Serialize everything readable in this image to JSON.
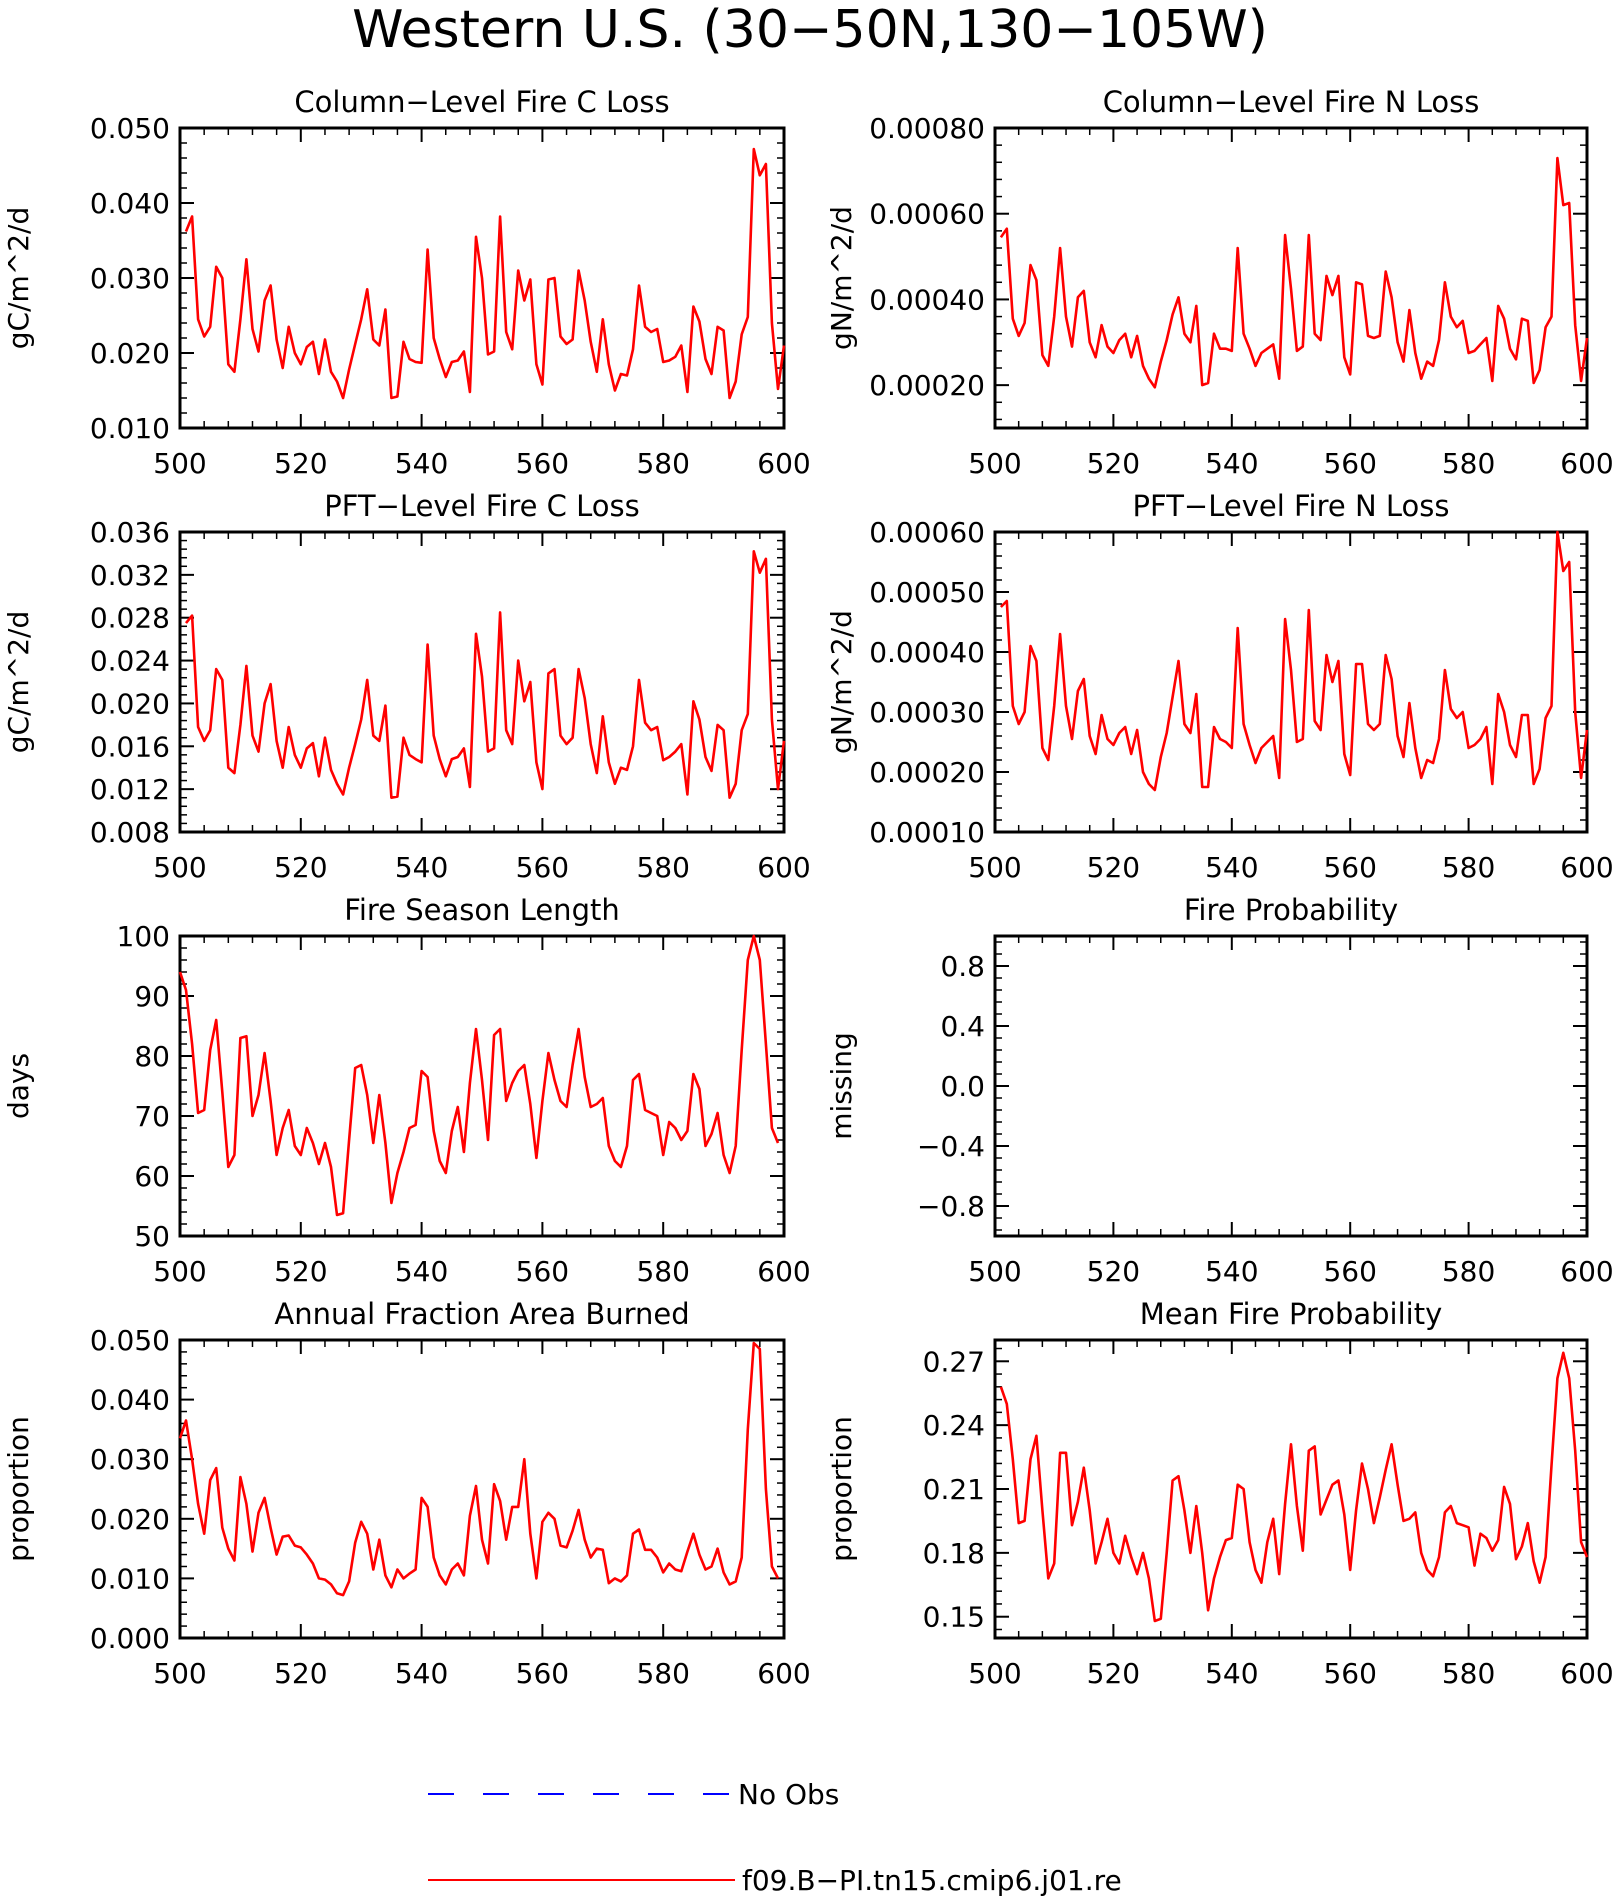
{
  "figure": {
    "title": "Western U.S. (30−50N,130−105W)",
    "line_color": "#ff0000",
    "obs_color": "#0000ff"
  },
  "legend": [
    {
      "label": "No Obs",
      "style": "dashed",
      "color": "#0000ff"
    },
    {
      "label": "f09.B−PI.tn15.cmip6.j01.re",
      "style": "solid",
      "color": "#ff0000"
    }
  ],
  "chart_data": [
    {
      "type": "line",
      "title": "Column−Level Fire C Loss",
      "ylabel": "gC/m^2/d",
      "xlim": [
        500,
        600
      ],
      "ylim": [
        0.01,
        0.05
      ],
      "xticks": [
        500,
        520,
        540,
        560,
        580,
        600
      ],
      "xtick_labels": [
        "500",
        "520",
        "540",
        "560",
        "580",
        "600"
      ],
      "yticks": [
        0.01,
        0.02,
        0.03,
        0.04,
        0.05
      ],
      "ytick_labels": [
        "0.010",
        "0.020",
        "0.030",
        "0.040",
        "0.050"
      ],
      "x_start": 501,
      "values": [
        0.0362,
        0.0382,
        0.0245,
        0.0222,
        0.0235,
        0.0315,
        0.03,
        0.0185,
        0.0175,
        0.0245,
        0.0325,
        0.0232,
        0.0202,
        0.027,
        0.029,
        0.0218,
        0.018,
        0.0235,
        0.02,
        0.0185,
        0.0208,
        0.0215,
        0.0172,
        0.0218,
        0.0175,
        0.0162,
        0.014,
        0.0178,
        0.0212,
        0.0245,
        0.0285,
        0.0218,
        0.021,
        0.0258,
        0.014,
        0.0142,
        0.0215,
        0.0192,
        0.0188,
        0.0187,
        0.0338,
        0.022,
        0.0192,
        0.0168,
        0.0188,
        0.019,
        0.0202,
        0.0148,
        0.0355,
        0.03,
        0.0198,
        0.0202,
        0.0382,
        0.0228,
        0.0205,
        0.031,
        0.027,
        0.0298,
        0.0185,
        0.0158,
        0.0298,
        0.03,
        0.0222,
        0.0212,
        0.0218,
        0.031,
        0.027,
        0.0215,
        0.0175,
        0.0245,
        0.0185,
        0.015,
        0.0172,
        0.017,
        0.0205,
        0.029,
        0.0235,
        0.0228,
        0.0232,
        0.0188,
        0.019,
        0.0195,
        0.021,
        0.0148,
        0.0262,
        0.0242,
        0.0192,
        0.0172,
        0.0235,
        0.023,
        0.014,
        0.0162,
        0.0225,
        0.0248,
        0.0472,
        0.0437,
        0.0452,
        0.024,
        0.0152,
        0.021
      ]
    },
    {
      "type": "line",
      "title": "Column−Level Fire N Loss",
      "ylabel": "gN/m^2/d",
      "xlim": [
        500,
        600
      ],
      "ylim": [
        0.0001,
        0.0008
      ],
      "xticks": [
        500,
        520,
        540,
        560,
        580,
        600
      ],
      "xtick_labels": [
        "500",
        "520",
        "540",
        "560",
        "580",
        "600"
      ],
      "yticks": [
        0.0002,
        0.0004,
        0.0006,
        0.0008
      ],
      "ytick_labels": [
        "0.00020",
        "0.00040",
        "0.00060",
        "0.00080"
      ],
      "x_start": 501,
      "values": [
        0.000545,
        0.000565,
        0.000355,
        0.000315,
        0.000345,
        0.00048,
        0.000445,
        0.00027,
        0.000245,
        0.00036,
        0.00052,
        0.00036,
        0.00029,
        0.000405,
        0.00042,
        0.0003,
        0.000265,
        0.00034,
        0.00029,
        0.000275,
        0.000305,
        0.00032,
        0.000265,
        0.000315,
        0.000245,
        0.000215,
        0.000195,
        0.000255,
        0.000305,
        0.000365,
        0.000405,
        0.00032,
        0.0003,
        0.000385,
        0.0002,
        0.000205,
        0.00032,
        0.000285,
        0.000285,
        0.00028,
        0.00052,
        0.00032,
        0.000285,
        0.000245,
        0.000275,
        0.000285,
        0.000295,
        0.000215,
        0.00055,
        0.000425,
        0.00028,
        0.00029,
        0.00055,
        0.00032,
        0.000305,
        0.000455,
        0.00041,
        0.000455,
        0.000265,
        0.000225,
        0.00044,
        0.000435,
        0.000315,
        0.00031,
        0.000315,
        0.000465,
        0.000405,
        0.0003,
        0.000255,
        0.000375,
        0.000275,
        0.000215,
        0.000255,
        0.000245,
        0.000305,
        0.00044,
        0.00036,
        0.000335,
        0.00035,
        0.000275,
        0.00028,
        0.000295,
        0.00031,
        0.00021,
        0.000385,
        0.000355,
        0.000285,
        0.00026,
        0.000355,
        0.00035,
        0.000205,
        0.000235,
        0.000335,
        0.00036,
        0.00073,
        0.00062,
        0.000625,
        0.00034,
        0.00021,
        0.00031
      ]
    },
    {
      "type": "line",
      "title": "PFT−Level Fire C Loss",
      "ylabel": "gC/m^2/d",
      "xlim": [
        500,
        600
      ],
      "ylim": [
        0.008,
        0.036
      ],
      "xticks": [
        500,
        520,
        540,
        560,
        580,
        600
      ],
      "xtick_labels": [
        "500",
        "520",
        "540",
        "560",
        "580",
        "600"
      ],
      "yticks": [
        0.008,
        0.012,
        0.016,
        0.02,
        0.024,
        0.028,
        0.032,
        0.036
      ],
      "ytick_labels": [
        "0.008",
        "0.012",
        "0.016",
        "0.020",
        "0.024",
        "0.028",
        "0.032",
        "0.036"
      ],
      "x_start": 501,
      "values": [
        0.0275,
        0.0282,
        0.0178,
        0.0165,
        0.0175,
        0.0232,
        0.0222,
        0.014,
        0.0135,
        0.018,
        0.0235,
        0.017,
        0.0155,
        0.02,
        0.0218,
        0.0165,
        0.014,
        0.0178,
        0.0152,
        0.014,
        0.0158,
        0.0163,
        0.0132,
        0.0168,
        0.0138,
        0.0125,
        0.0115,
        0.014,
        0.0162,
        0.0185,
        0.0222,
        0.017,
        0.0165,
        0.0198,
        0.0112,
        0.0113,
        0.0168,
        0.0152,
        0.0148,
        0.0145,
        0.0255,
        0.017,
        0.0148,
        0.0132,
        0.0148,
        0.015,
        0.0158,
        0.0122,
        0.0265,
        0.0225,
        0.0155,
        0.0158,
        0.0285,
        0.0175,
        0.0162,
        0.024,
        0.0202,
        0.022,
        0.0145,
        0.012,
        0.0228,
        0.0232,
        0.017,
        0.0162,
        0.0168,
        0.0232,
        0.0205,
        0.0162,
        0.0135,
        0.0188,
        0.0145,
        0.0125,
        0.014,
        0.0138,
        0.016,
        0.0222,
        0.0182,
        0.0175,
        0.0178,
        0.0147,
        0.015,
        0.0155,
        0.0162,
        0.0115,
        0.0202,
        0.0185,
        0.015,
        0.0137,
        0.018,
        0.0175,
        0.0112,
        0.0125,
        0.0175,
        0.019,
        0.0342,
        0.0322,
        0.0335,
        0.0185,
        0.012,
        0.0165
      ]
    },
    {
      "type": "line",
      "title": "PFT−Level Fire N Loss",
      "ylabel": "gN/m^2/d",
      "xlim": [
        500,
        600
      ],
      "ylim": [
        0.0001,
        0.0006
      ],
      "xticks": [
        500,
        520,
        540,
        560,
        580,
        600
      ],
      "xtick_labels": [
        "500",
        "520",
        "540",
        "560",
        "580",
        "600"
      ],
      "yticks": [
        0.0001,
        0.0002,
        0.0003,
        0.0004,
        0.0005,
        0.0006
      ],
      "ytick_labels": [
        "0.00010",
        "0.00020",
        "0.00030",
        "0.00040",
        "0.00050",
        "0.00060"
      ],
      "x_start": 501,
      "values": [
        0.000475,
        0.000485,
        0.00031,
        0.00028,
        0.0003,
        0.00041,
        0.000385,
        0.00024,
        0.00022,
        0.00031,
        0.00043,
        0.00031,
        0.000255,
        0.000335,
        0.000355,
        0.00026,
        0.00023,
        0.000295,
        0.000255,
        0.000245,
        0.000265,
        0.000275,
        0.00023,
        0.00027,
        0.0002,
        0.00018,
        0.00017,
        0.000225,
        0.000265,
        0.000325,
        0.000385,
        0.00028,
        0.000265,
        0.00033,
        0.000175,
        0.000175,
        0.000275,
        0.000255,
        0.00025,
        0.00024,
        0.00044,
        0.00028,
        0.000245,
        0.000215,
        0.00024,
        0.00025,
        0.00026,
        0.00019,
        0.000455,
        0.00037,
        0.00025,
        0.000255,
        0.00047,
        0.000285,
        0.00027,
        0.000395,
        0.00035,
        0.000385,
        0.00023,
        0.000195,
        0.00038,
        0.00038,
        0.00028,
        0.00027,
        0.00028,
        0.000395,
        0.000355,
        0.00026,
        0.000225,
        0.000315,
        0.00024,
        0.00019,
        0.00022,
        0.000215,
        0.000255,
        0.00037,
        0.000305,
        0.00029,
        0.0003,
        0.00024,
        0.000245,
        0.000255,
        0.000275,
        0.00018,
        0.00033,
        0.0003,
        0.000245,
        0.000225,
        0.000295,
        0.000295,
        0.00018,
        0.000205,
        0.00029,
        0.00031,
        0.0006,
        0.000535,
        0.00055,
        0.0003,
        0.00019,
        0.00027
      ]
    },
    {
      "type": "line",
      "title": "Fire Season Length",
      "ylabel": "days",
      "xlim": [
        500,
        600
      ],
      "ylim": [
        50,
        100
      ],
      "xticks": [
        500,
        520,
        540,
        560,
        580,
        600
      ],
      "xtick_labels": [
        "500",
        "520",
        "540",
        "560",
        "580",
        "600"
      ],
      "yticks": [
        50,
        60,
        70,
        80,
        90,
        100
      ],
      "ytick_labels": [
        "50",
        "60",
        "70",
        "80",
        "90",
        "100"
      ],
      "x_start": 500,
      "values": [
        94,
        91,
        82,
        70.5,
        71,
        81,
        86,
        74,
        61.5,
        63.5,
        83,
        83.3,
        70,
        73.5,
        80.5,
        72.5,
        63.5,
        68,
        71,
        65,
        63.5,
        68,
        65.5,
        62,
        65.5,
        61.5,
        53.5,
        53.8,
        66,
        78,
        78.5,
        73.5,
        65.5,
        73.5,
        65.5,
        55.5,
        60.5,
        64,
        68,
        68.5,
        77.5,
        76.5,
        67.5,
        62.5,
        60.5,
        67.5,
        71.5,
        64,
        75.5,
        84.5,
        76,
        66,
        83.5,
        84.5,
        72.5,
        75.5,
        77.5,
        78.5,
        72,
        63,
        72.5,
        80.5,
        76,
        72.5,
        71.5,
        78.5,
        84.5,
        76.5,
        71.5,
        72,
        73,
        65,
        62.5,
        61.5,
        65,
        76,
        77,
        71,
        70.5,
        70,
        63.5,
        69,
        68,
        66,
        67.5,
        77,
        74.5,
        65,
        67,
        70.5,
        63.5,
        60.5,
        65,
        81,
        96,
        100,
        96,
        82,
        68,
        65.5
      ]
    },
    {
      "type": "line",
      "title": "Fire Probability",
      "ylabel": "missing",
      "xlim": [
        500,
        600
      ],
      "ylim": [
        -1.0,
        1.0
      ],
      "xticks": [
        500,
        520,
        540,
        560,
        580,
        600
      ],
      "xtick_labels": [
        "500",
        "520",
        "540",
        "560",
        "580",
        "600"
      ],
      "yticks": [
        -0.8,
        -0.4,
        0.0,
        0.4,
        0.8
      ],
      "ytick_labels": [
        "−0.8",
        "−0.4",
        "0.0",
        "0.4",
        "0.8"
      ],
      "x_start": 501,
      "values": []
    },
    {
      "type": "line",
      "title": "Annual Fraction Area Burned",
      "ylabel": "proportion",
      "xlim": [
        500,
        600
      ],
      "ylim": [
        0.0,
        0.05
      ],
      "xticks": [
        500,
        520,
        540,
        560,
        580,
        600
      ],
      "xtick_labels": [
        "500",
        "520",
        "540",
        "560",
        "580",
        "600"
      ],
      "yticks": [
        0.0,
        0.01,
        0.02,
        0.03,
        0.04,
        0.05
      ],
      "ytick_labels": [
        "0.000",
        "0.010",
        "0.020",
        "0.030",
        "0.040",
        "0.050"
      ],
      "x_start": 500,
      "values": [
        0.0335,
        0.0365,
        0.03,
        0.0225,
        0.0175,
        0.0265,
        0.0285,
        0.0185,
        0.015,
        0.013,
        0.027,
        0.0225,
        0.0145,
        0.021,
        0.0235,
        0.0185,
        0.014,
        0.017,
        0.0172,
        0.0155,
        0.0152,
        0.014,
        0.0125,
        0.01,
        0.0098,
        0.009,
        0.0075,
        0.0072,
        0.0095,
        0.016,
        0.0195,
        0.0175,
        0.0115,
        0.0165,
        0.0105,
        0.0085,
        0.0115,
        0.01,
        0.0108,
        0.0115,
        0.0235,
        0.022,
        0.0135,
        0.0105,
        0.009,
        0.0115,
        0.0125,
        0.0105,
        0.0205,
        0.0255,
        0.0165,
        0.0125,
        0.0258,
        0.023,
        0.0165,
        0.022,
        0.022,
        0.03,
        0.0175,
        0.01,
        0.0195,
        0.021,
        0.02,
        0.0155,
        0.0152,
        0.018,
        0.0215,
        0.0165,
        0.0135,
        0.015,
        0.0148,
        0.0092,
        0.01,
        0.0095,
        0.0105,
        0.0175,
        0.0182,
        0.0148,
        0.0148,
        0.0135,
        0.011,
        0.0125,
        0.0115,
        0.0112,
        0.0145,
        0.0175,
        0.014,
        0.0115,
        0.012,
        0.015,
        0.011,
        0.009,
        0.0095,
        0.0135,
        0.035,
        0.0495,
        0.0485,
        0.025,
        0.012,
        0.01
      ]
    },
    {
      "type": "line",
      "title": "Mean Fire Probability",
      "ylabel": "proportion",
      "xlim": [
        500,
        600
      ],
      "ylim": [
        0.14,
        0.28
      ],
      "xticks": [
        500,
        520,
        540,
        560,
        580,
        600
      ],
      "xtick_labels": [
        "500",
        "520",
        "540",
        "560",
        "580",
        "600"
      ],
      "yticks": [
        0.15,
        0.18,
        0.21,
        0.24,
        0.27
      ],
      "ytick_labels": [
        "0.15",
        "0.18",
        "0.21",
        "0.24",
        "0.27"
      ],
      "x_start": 501,
      "values": [
        0.258,
        0.25,
        0.224,
        0.194,
        0.195,
        0.224,
        0.235,
        0.2,
        0.168,
        0.175,
        0.227,
        0.227,
        0.193,
        0.204,
        0.22,
        0.2,
        0.175,
        0.185,
        0.196,
        0.18,
        0.175,
        0.188,
        0.178,
        0.17,
        0.18,
        0.168,
        0.148,
        0.149,
        0.18,
        0.214,
        0.216,
        0.2,
        0.18,
        0.202,
        0.18,
        0.153,
        0.168,
        0.178,
        0.186,
        0.187,
        0.212,
        0.21,
        0.185,
        0.172,
        0.166,
        0.185,
        0.196,
        0.17,
        0.203,
        0.231,
        0.202,
        0.181,
        0.228,
        0.23,
        0.198,
        0.205,
        0.212,
        0.214,
        0.198,
        0.172,
        0.2,
        0.222,
        0.21,
        0.194,
        0.206,
        0.219,
        0.231,
        0.212,
        0.195,
        0.196,
        0.199,
        0.18,
        0.172,
        0.169,
        0.178,
        0.199,
        0.202,
        0.194,
        0.193,
        0.192,
        0.174,
        0.189,
        0.187,
        0.181,
        0.186,
        0.211,
        0.203,
        0.177,
        0.183,
        0.194,
        0.176,
        0.166,
        0.178,
        0.221,
        0.262,
        0.274,
        0.262,
        0.228,
        0.185,
        0.178
      ]
    }
  ]
}
